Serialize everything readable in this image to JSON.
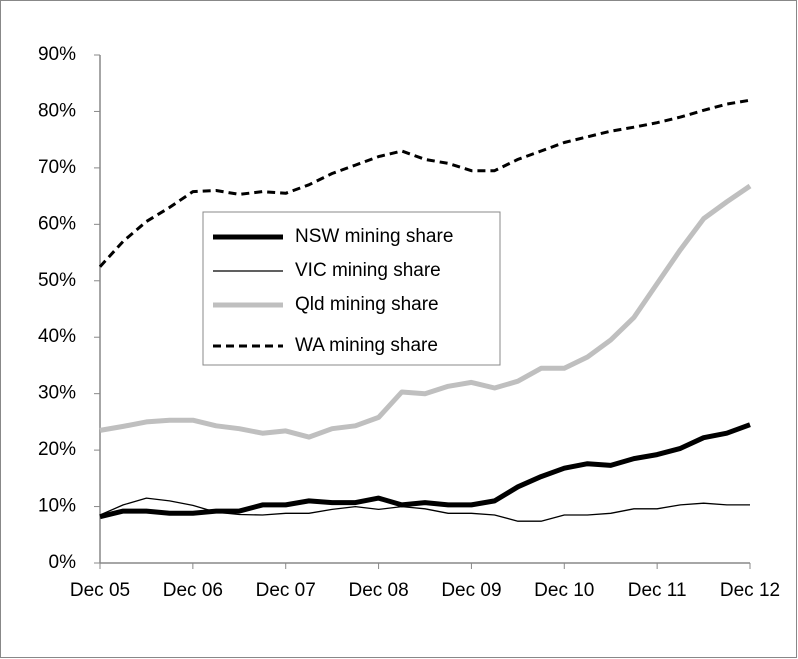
{
  "chart_data": {
    "type": "line",
    "categories": [
      "Dec 05",
      null,
      null,
      null,
      "Dec 06",
      null,
      null,
      null,
      "Dec 07",
      null,
      null,
      null,
      "Dec 08",
      null,
      null,
      null,
      "Dec 09",
      null,
      null,
      null,
      "Dec 10",
      null,
      null,
      null,
      "Dec 11",
      null,
      null,
      null,
      "Dec 12"
    ],
    "series": [
      {
        "name": "NSW mining share",
        "color": "#000000",
        "width": 5,
        "dash": false,
        "values": [
          8.2,
          9.2,
          9.2,
          8.8,
          8.8,
          9.2,
          9.2,
          10.3,
          10.3,
          11,
          10.7,
          10.7,
          11.5,
          10.3,
          10.7,
          10.3,
          10.3,
          11,
          13.5,
          15.3,
          16.8,
          17.6,
          17.3,
          18.5,
          19.2,
          20.3,
          22.2,
          23,
          24.5
        ]
      },
      {
        "name": "VIC mining share",
        "color": "#000000",
        "width": 1.3,
        "dash": false,
        "values": [
          8.5,
          10.3,
          11.5,
          11,
          10.2,
          9,
          8.6,
          8.5,
          8.8,
          8.8,
          9.5,
          10,
          9.5,
          10,
          9.6,
          8.8,
          8.8,
          8.5,
          7.4,
          7.4,
          8.5,
          8.5,
          8.8,
          9.6,
          9.6,
          10.3,
          10.6,
          10.3,
          10.3
        ]
      },
      {
        "name": "Qld mining share",
        "color": "#bfbfbf",
        "width": 5,
        "dash": false,
        "values": [
          23.5,
          24.2,
          25,
          25.3,
          25.3,
          24.3,
          23.8,
          23,
          23.4,
          22.3,
          23.8,
          24.3,
          25.8,
          30.3,
          30,
          31.3,
          32,
          31,
          32.2,
          34.5,
          34.5,
          36.5,
          39.5,
          43.5,
          49.5,
          55.5,
          61,
          64,
          66.8
        ]
      },
      {
        "name": "WA mining share",
        "color": "#000000",
        "width": 3,
        "dash": true,
        "values": [
          52.5,
          57,
          60.5,
          63,
          65.8,
          66,
          65.3,
          65.8,
          65.5,
          67,
          69,
          70.5,
          72,
          73,
          71.5,
          70.8,
          69.5,
          69.5,
          71.5,
          73,
          74.5,
          75.5,
          76.5,
          77.2,
          78,
          79,
          80.2,
          81.3,
          82
        ]
      }
    ],
    "ylim": [
      0,
      90
    ],
    "yticks": [
      {
        "value": 0,
        "label": "0%"
      },
      {
        "value": 10,
        "label": "10%"
      },
      {
        "value": 20,
        "label": "20%"
      },
      {
        "value": 30,
        "label": "30%"
      },
      {
        "value": 40,
        "label": "40%"
      },
      {
        "value": 50,
        "label": "50%"
      },
      {
        "value": 60,
        "label": "60%"
      },
      {
        "value": 70,
        "label": "70%"
      },
      {
        "value": 80,
        "label": "80%"
      },
      {
        "value": 90,
        "label": "90%"
      }
    ],
    "grid": false,
    "legend": "inside-left"
  }
}
